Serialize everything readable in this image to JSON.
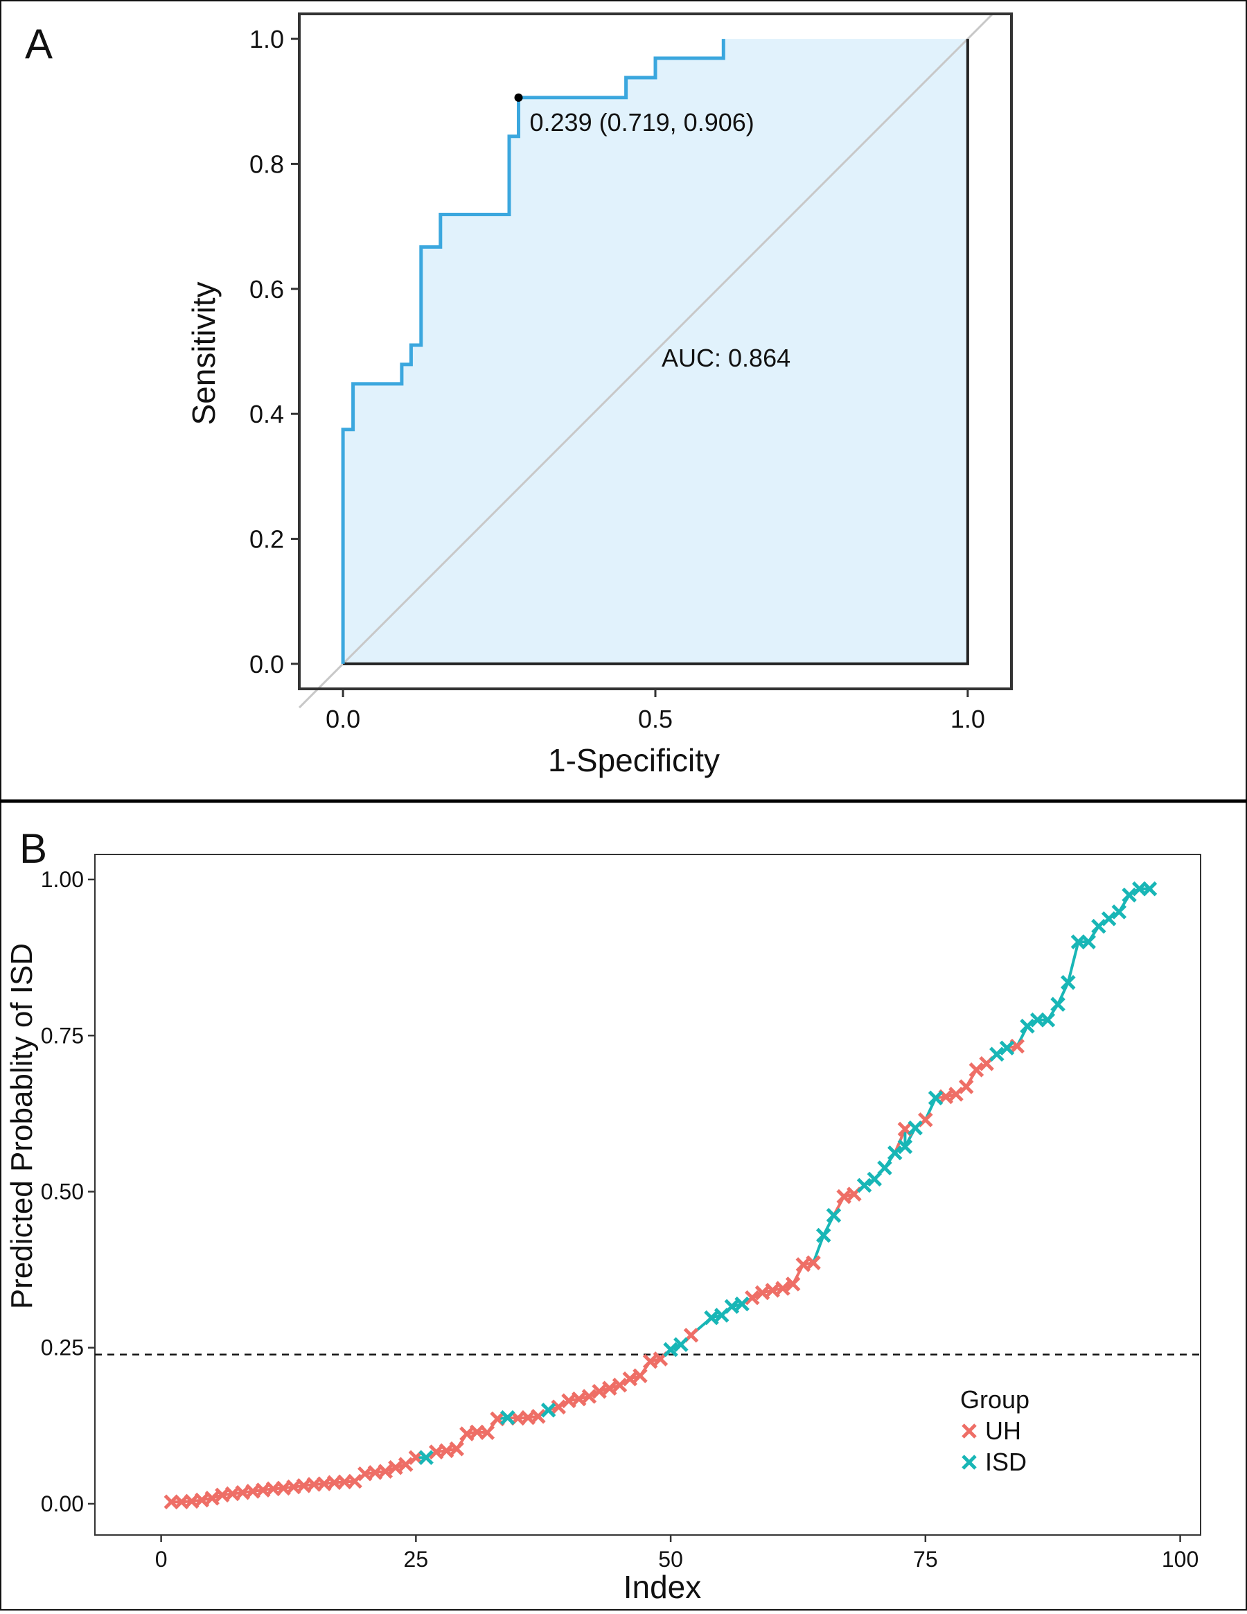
{
  "panels": {
    "a": {
      "label": "A"
    },
    "b": {
      "label": "B"
    }
  },
  "colors": {
    "roc_line": "#3BA7DE",
    "roc_fill": "#E1F2FC",
    "diagonal": "#C8C8C8",
    "uh": "#EE6E66",
    "isd": "#18B6B6",
    "frame": "#333333"
  },
  "chart_data": [
    {
      "type": "line",
      "panel": "A",
      "title": "",
      "xlabel": "1-Specificity",
      "ylabel": "Sensitivity",
      "xlim": [
        -0.07,
        1.07
      ],
      "ylim": [
        -0.04,
        1.04
      ],
      "xticks": [
        0.0,
        0.5,
        1.0
      ],
      "xtick_labels": [
        "0.0",
        "0.5",
        "1.0"
      ],
      "yticks": [
        0.0,
        0.2,
        0.4,
        0.6,
        0.8,
        1.0
      ],
      "ytick_labels": [
        "0.0",
        "0.2",
        "0.4",
        "0.6",
        "0.8",
        "1.0"
      ],
      "grid": false,
      "fill_under_curve": true,
      "reference_diagonal": true,
      "series": [
        {
          "x": [
            0.0,
            0.0,
            0.016,
            0.016,
            0.094,
            0.094,
            0.109,
            0.109,
            0.125,
            0.125,
            0.156,
            0.156,
            0.266,
            0.266,
            0.281,
            0.281,
            0.453,
            0.453,
            0.5,
            0.5,
            0.609,
            0.609,
            1.0,
            1.0,
            0.0
          ],
          "y": [
            0.0,
            0.375,
            0.375,
            0.448,
            0.448,
            0.479,
            0.479,
            0.51,
            0.51,
            0.667,
            0.667,
            0.719,
            0.719,
            0.844,
            0.844,
            0.906,
            0.906,
            0.938,
            0.938,
            0.969,
            0.969,
            1.0,
            1.0,
            0.0,
            0.0
          ]
        }
      ],
      "optimal_point": {
        "threshold": 0.239,
        "x": 0.281,
        "y": 0.906,
        "label": "0.239 (0.719, 0.906)"
      },
      "annotations": [
        {
          "text": "AUC: 0.864",
          "x": 0.51,
          "y": 0.49
        }
      ]
    },
    {
      "type": "scatter",
      "panel": "B",
      "title": "",
      "xlabel": "Index",
      "ylabel": "Predicted Probablity of ISD",
      "xlim": [
        -6.5,
        102
      ],
      "ylim": [
        -0.05,
        1.04
      ],
      "xticks": [
        0,
        25,
        50,
        75,
        100
      ],
      "xtick_labels": [
        "0",
        "25",
        "50",
        "75",
        "100"
      ],
      "yticks": [
        0.0,
        0.25,
        0.5,
        0.75,
        1.0
      ],
      "ytick_labels": [
        "0.00",
        "0.25",
        "0.50",
        "0.75",
        "1.00"
      ],
      "grid": false,
      "threshold_line": 0.239,
      "legend_title": "Group",
      "legend_position": "bottom-right",
      "series": [
        {
          "name": "UH",
          "x": [
            1,
            2,
            3,
            4,
            5,
            6,
            7,
            8,
            9,
            10,
            11,
            12,
            13,
            14,
            15,
            16,
            17,
            18,
            19,
            20,
            21,
            22,
            23,
            24,
            25,
            27,
            28,
            29,
            30,
            31,
            32,
            33,
            35,
            36,
            37,
            39,
            40,
            41,
            42,
            43,
            44,
            45,
            46,
            47,
            48,
            49,
            52,
            58,
            59,
            60,
            61,
            62,
            63,
            64,
            67,
            68,
            73,
            75,
            77,
            78,
            79,
            80,
            81,
            84
          ],
          "values": [
            0.003,
            0.003,
            0.004,
            0.006,
            0.009,
            0.014,
            0.016,
            0.018,
            0.02,
            0.022,
            0.024,
            0.025,
            0.027,
            0.029,
            0.031,
            0.032,
            0.034,
            0.035,
            0.036,
            0.048,
            0.05,
            0.052,
            0.058,
            0.063,
            0.074,
            0.083,
            0.085,
            0.088,
            0.112,
            0.115,
            0.114,
            0.136,
            0.137,
            0.138,
            0.14,
            0.155,
            0.165,
            0.168,
            0.172,
            0.18,
            0.185,
            0.19,
            0.2,
            0.205,
            0.228,
            0.232,
            0.27,
            0.33,
            0.338,
            0.342,
            0.345,
            0.352,
            0.383,
            0.386,
            0.492,
            0.496,
            0.6,
            0.615,
            0.652,
            0.656,
            0.668,
            0.695,
            0.705,
            0.733
          ]
        },
        {
          "name": "ISD",
          "x": [
            26,
            34,
            38,
            50,
            51,
            54,
            55,
            56,
            57,
            65,
            66,
            69,
            70,
            71,
            72,
            73,
            74,
            76,
            82,
            83,
            85,
            86,
            87,
            88,
            89,
            90,
            91,
            92,
            93,
            94,
            95,
            96,
            97
          ],
          "values": [
            0.074,
            0.138,
            0.15,
            0.247,
            0.255,
            0.298,
            0.302,
            0.316,
            0.32,
            0.43,
            0.462,
            0.51,
            0.52,
            0.538,
            0.562,
            0.572,
            0.602,
            0.65,
            0.72,
            0.73,
            0.765,
            0.775,
            0.775,
            0.8,
            0.835,
            0.9,
            0.9,
            0.925,
            0.937,
            0.948,
            0.975,
            0.985,
            0.985
          ]
        }
      ]
    }
  ]
}
